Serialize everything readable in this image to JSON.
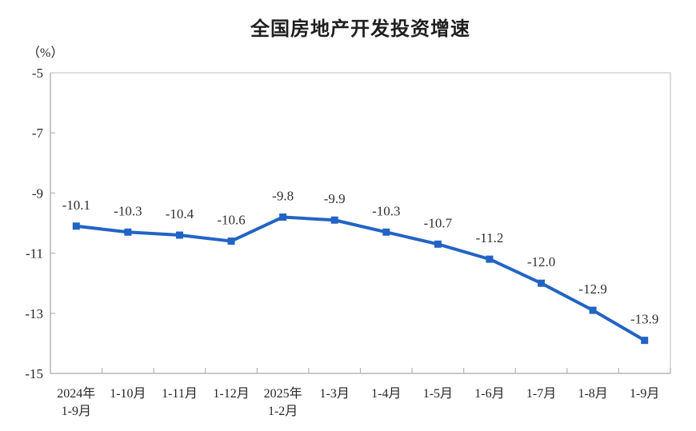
{
  "header": {
    "title": "全国房地产开发投资增速"
  },
  "y_axis": {
    "unit_label": "（%）"
  },
  "chart_data": {
    "type": "line",
    "title": "全国房地产开发投资增速",
    "ylabel": "（%）",
    "xlabel": "",
    "categories": [
      "2024年\n1-9月",
      "1-10月",
      "1-11月",
      "1-12月",
      "2025年\n1-2月",
      "1-3月",
      "1-4月",
      "1-5月",
      "1-6月",
      "1-7月",
      "1-8月",
      "1-9月"
    ],
    "values": [
      -10.1,
      -10.3,
      -10.4,
      -10.6,
      -9.8,
      -9.9,
      -10.3,
      -10.7,
      -11.2,
      -12.0,
      -12.9,
      -13.9
    ],
    "data_labels": [
      "-10.1",
      "-10.3",
      "-10.4",
      "-10.6",
      "-9.8",
      "-9.9",
      "-10.3",
      "-10.7",
      "-11.2",
      "-12.0",
      "-12.9",
      "-13.9"
    ],
    "ylim": [
      -15,
      -5
    ],
    "yticks": [
      -5,
      -7,
      -9,
      -11,
      -13,
      -15
    ],
    "ytick_labels": [
      "-5",
      "-7",
      "-9",
      "-11",
      "-13",
      "-15"
    ],
    "grid": false,
    "legend": "none",
    "line_color": "#2264C4",
    "marker": "square",
    "marker_color": "#2264C4",
    "axis_color": "#a9a9a9",
    "border_color": "#c9c9c9",
    "tick_color": "#b3b3b3"
  }
}
